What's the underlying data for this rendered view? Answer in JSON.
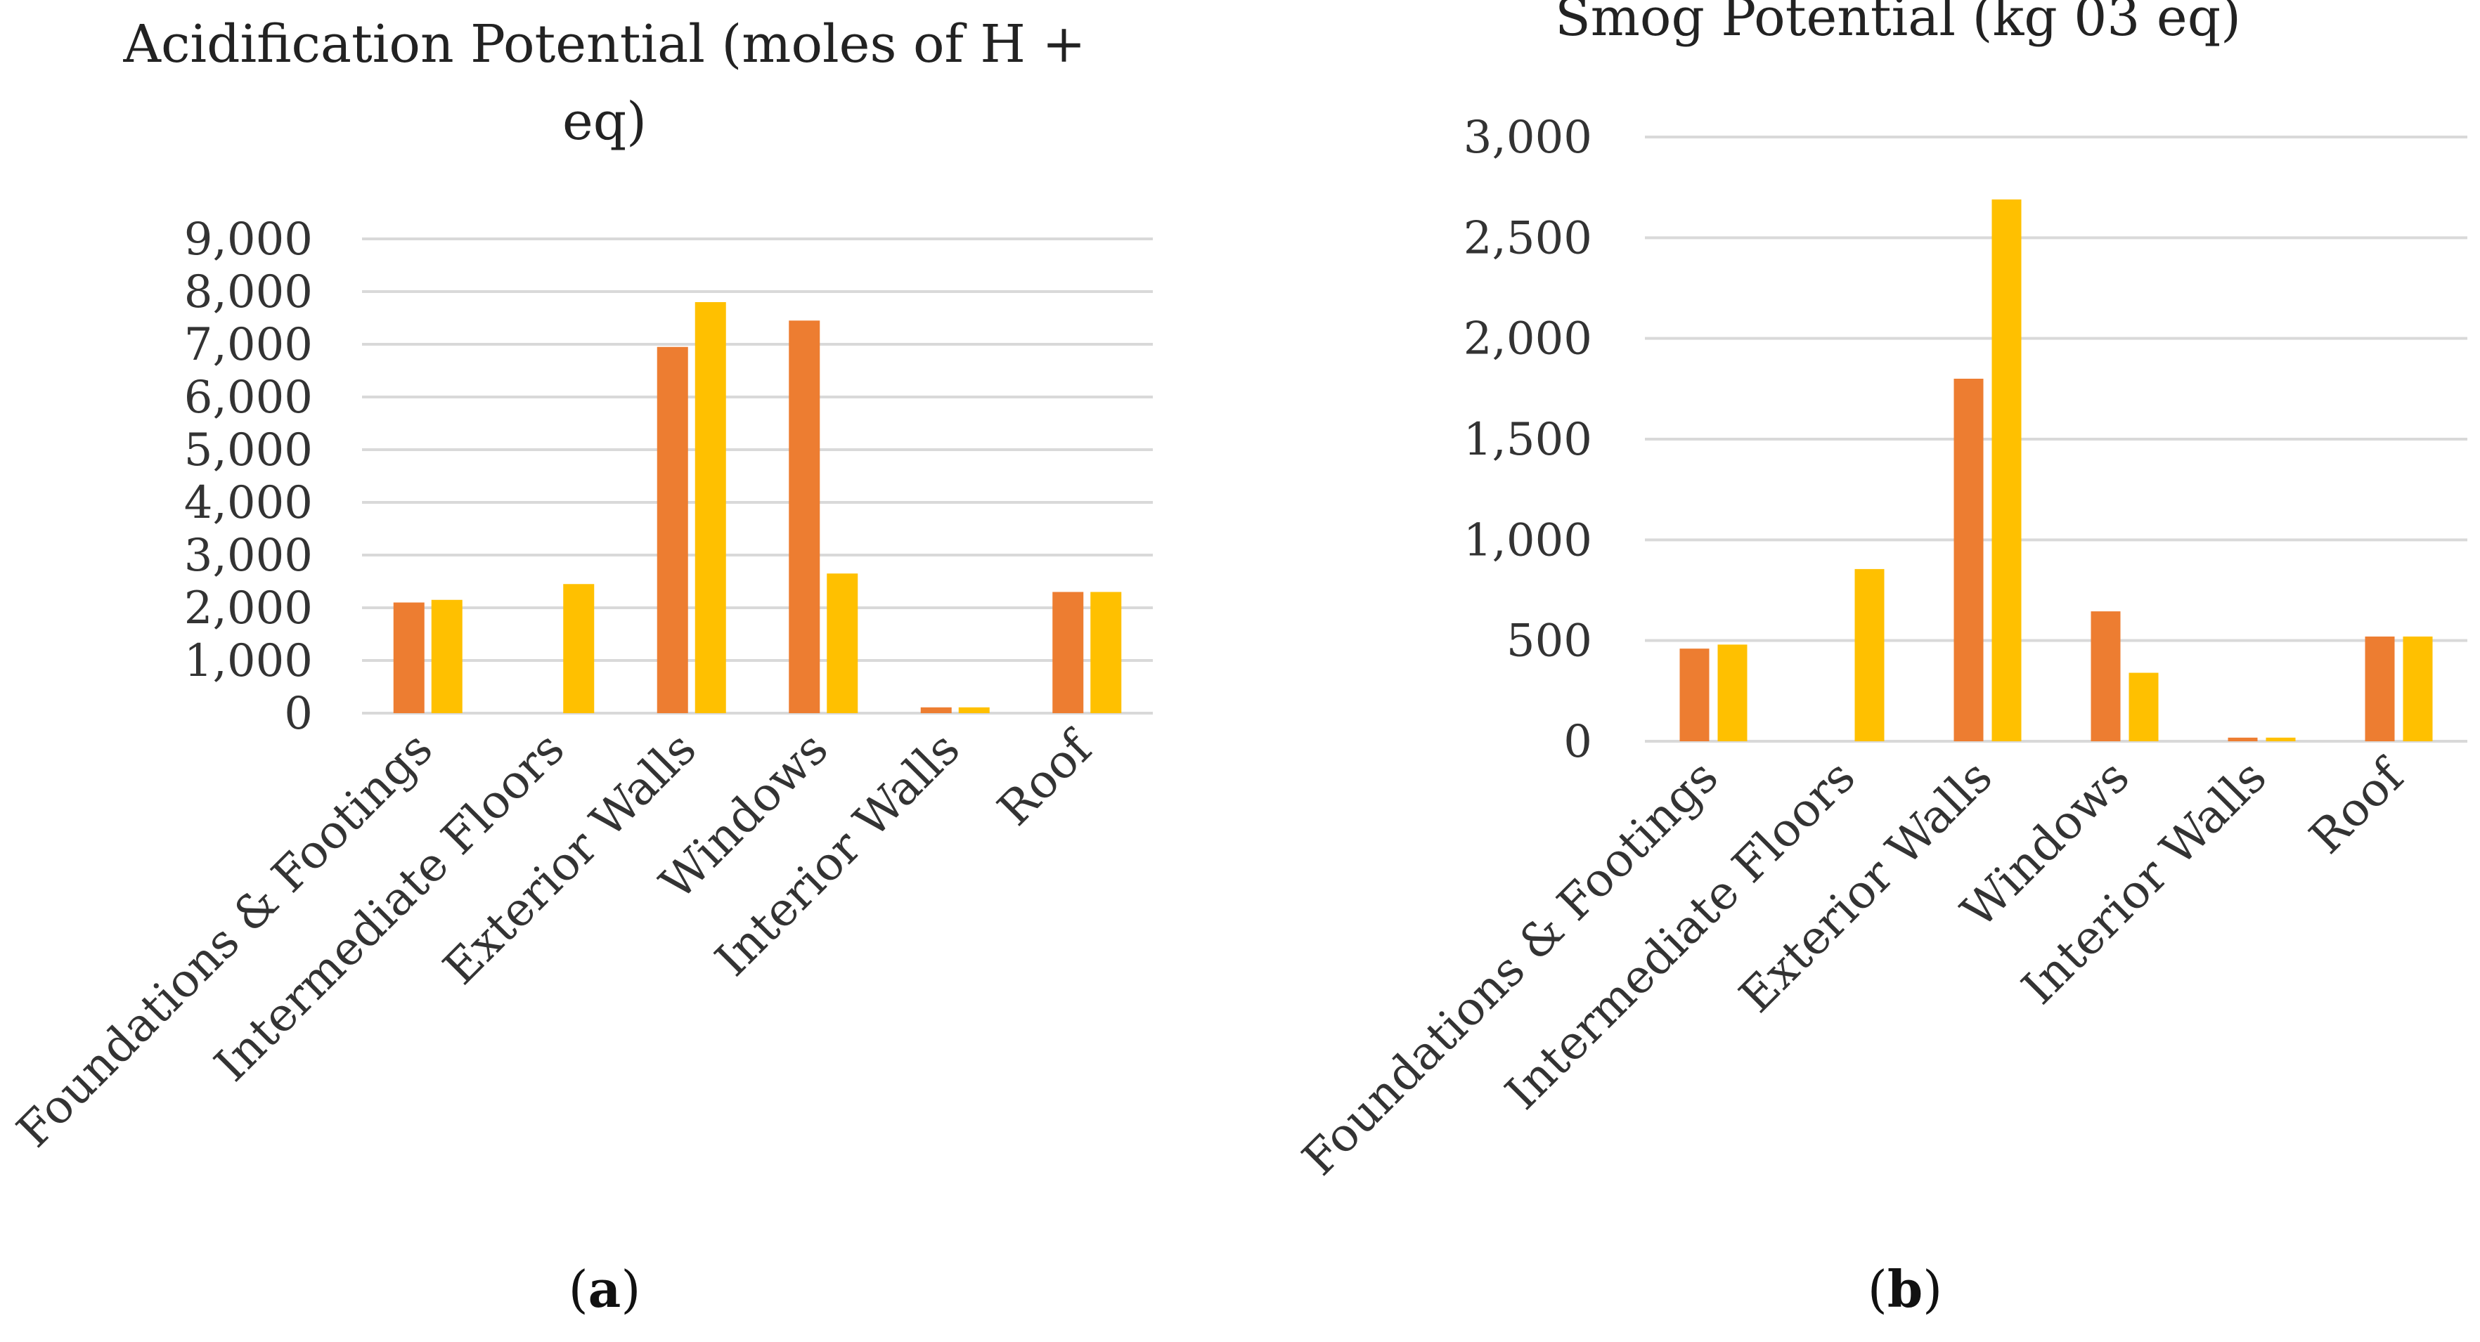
{
  "chart_data": [
    {
      "type": "bar",
      "title_lines": [
        "Acidification Potential (moles of H +",
        "eq)"
      ],
      "categories": [
        "Foundations & Footings",
        "Intermediate Floors",
        "Exterior Walls",
        "Windows",
        "Interior Walls",
        "Roof"
      ],
      "series": [
        {
          "name": "Series 1",
          "color": "#ED7D31",
          "values": [
            2100,
            null,
            6950,
            7450,
            110,
            2300
          ]
        },
        {
          "name": "Series 2",
          "color": "#FFC000",
          "values": [
            2150,
            2450,
            7800,
            2650,
            110,
            2300
          ]
        }
      ],
      "ylim": [
        0,
        9000
      ],
      "yticks": [
        0,
        1000,
        2000,
        3000,
        4000,
        5000,
        6000,
        7000,
        8000,
        9000
      ],
      "ytick_labels": [
        "0",
        "1,000",
        "2,000",
        "3,000",
        "4,000",
        "5,000",
        "6,000",
        "7,000",
        "8,000",
        "9,000"
      ],
      "grid": true,
      "legend": "none",
      "panel_open": "(",
      "panel_letter": "a",
      "panel_close": ")"
    },
    {
      "type": "bar",
      "title_lines": [
        "Smog Potential (kg 03 eq)"
      ],
      "categories": [
        "Foundations & Footings",
        "Intermediate Floors",
        "Exterior Walls",
        "Windows",
        "Interior Walls",
        "Roof"
      ],
      "series": [
        {
          "name": "Series 1",
          "color": "#ED7D31",
          "values": [
            460,
            null,
            1800,
            645,
            18,
            520
          ]
        },
        {
          "name": "Series 2",
          "color": "#FFC000",
          "values": [
            480,
            855,
            2690,
            340,
            18,
            520
          ]
        }
      ],
      "ylim": [
        0,
        3000
      ],
      "yticks": [
        0,
        500,
        1000,
        1500,
        2000,
        2500,
        3000
      ],
      "ytick_labels": [
        "0",
        "500",
        "1,000",
        "1,500",
        "2,000",
        "2,500",
        "3,000"
      ],
      "grid": true,
      "legend": "none",
      "panel_open": "(",
      "panel_letter": "b",
      "panel_close": ")"
    }
  ]
}
